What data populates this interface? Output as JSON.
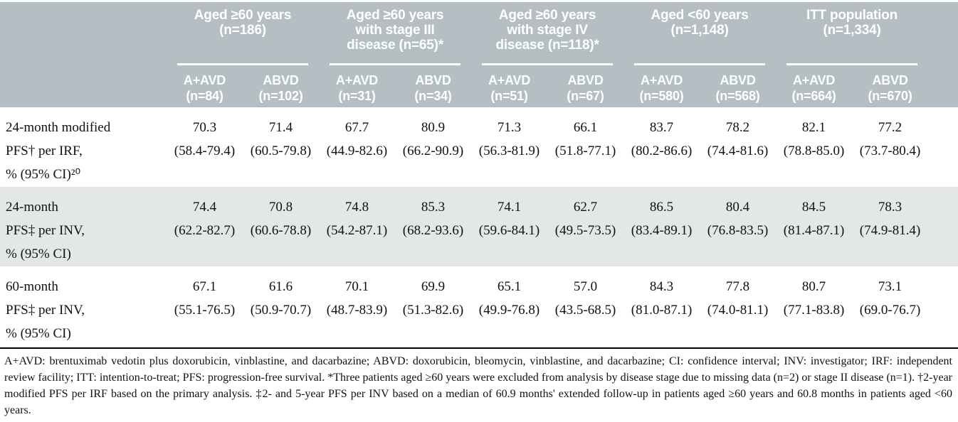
{
  "table": {
    "groups": [
      {
        "label": "Aged ≥60 years\n(n=186)",
        "sub": [
          "A+AVD\n(n=84)",
          "ABVD\n(n=102)"
        ]
      },
      {
        "label": "Aged ≥60 years\nwith stage III\ndisease (n=65)*",
        "sub": [
          "A+AVD\n(n=31)",
          "ABVD\n(n=34)"
        ]
      },
      {
        "label": "Aged ≥60 years\nwith stage IV\ndisease (n=118)*",
        "sub": [
          "A+AVD\n(n=51)",
          "ABVD\n(n=67)"
        ]
      },
      {
        "label": "Aged <60 years\n(n=1,148)",
        "sub": [
          "A+AVD\n(n=580)",
          "ABVD\n(n=568)"
        ]
      },
      {
        "label": "ITT population\n(n=1,334)",
        "sub": [
          "A+AVD\n(n=664)",
          "ABVD\n(n=670)"
        ]
      }
    ],
    "rows": [
      {
        "label": "24-month modified\nPFS† per IRF,\n% (95% CI)²⁰",
        "values": [
          "70.3\n(58.4-79.4)",
          "71.4\n(60.5-79.8)",
          "67.7\n(44.9-82.6)",
          "80.9\n(66.2-90.9)",
          "71.3\n(56.3-81.9)",
          "66.1\n(51.8-77.1)",
          "83.7\n(80.2-86.6)",
          "78.2\n(74.4-81.6)",
          "82.1\n(78.8-85.0)",
          "77.2\n(73.7-80.4)"
        ]
      },
      {
        "label": "24-month\nPFS‡ per INV,\n% (95% CI)",
        "values": [
          "74.4\n(62.2-82.7)",
          "70.8\n(60.6-78.8)",
          "74.8\n(54.2-87.1)",
          "85.3\n(68.2-93.6)",
          "74.1\n(59.6-84.1)",
          "62.7\n(49.5-73.5)",
          "86.5\n(83.4-89.1)",
          "80.4\n(76.8-83.5)",
          "84.5\n(81.4-87.1)",
          "78.3\n(74.9-81.4)"
        ]
      },
      {
        "label": "60-month\nPFS‡ per INV,\n% (95% CI)",
        "values": [
          "67.1\n(55.1-76.5)",
          "61.6\n(50.9-70.7)",
          "70.1\n(48.7-83.9)",
          "69.9\n(51.3-82.6)",
          "65.1\n(49.9-76.8)",
          "57.0\n(43.5-68.5)",
          "84.3\n(81.0-87.1)",
          "77.8\n(74.0-81.1)",
          "80.7\n(77.1-83.8)",
          "73.1\n(69.0-76.7)"
        ]
      }
    ],
    "footnote": "A+AVD: brentuximab vedotin plus doxorubicin, vinblastine, and dacarbazine; ABVD: doxorubicin, bleomycin, vinblastine, and dacarbazine; CI: confidence interval; INV: investigator; IRF: independent review facility; ITT: intention-to-treat; PFS: progression-free survival. *Three patients aged ≥60 years were excluded from analysis by disease stage due to missing data (n=2) or stage II disease (n=1). †2-year modified PFS per IRF based on the primary analysis. ‡2- and 5-year PFS per INV based on a median of 60.9 months' extended follow-up in patients aged ≥60 years and 60.8 months in patients aged <60 years."
  },
  "colors": {
    "header_bg": "#b4bec3",
    "stripe_bg": "#e4e7e8",
    "header_rule": "#ffffff",
    "divider": "#000000"
  }
}
